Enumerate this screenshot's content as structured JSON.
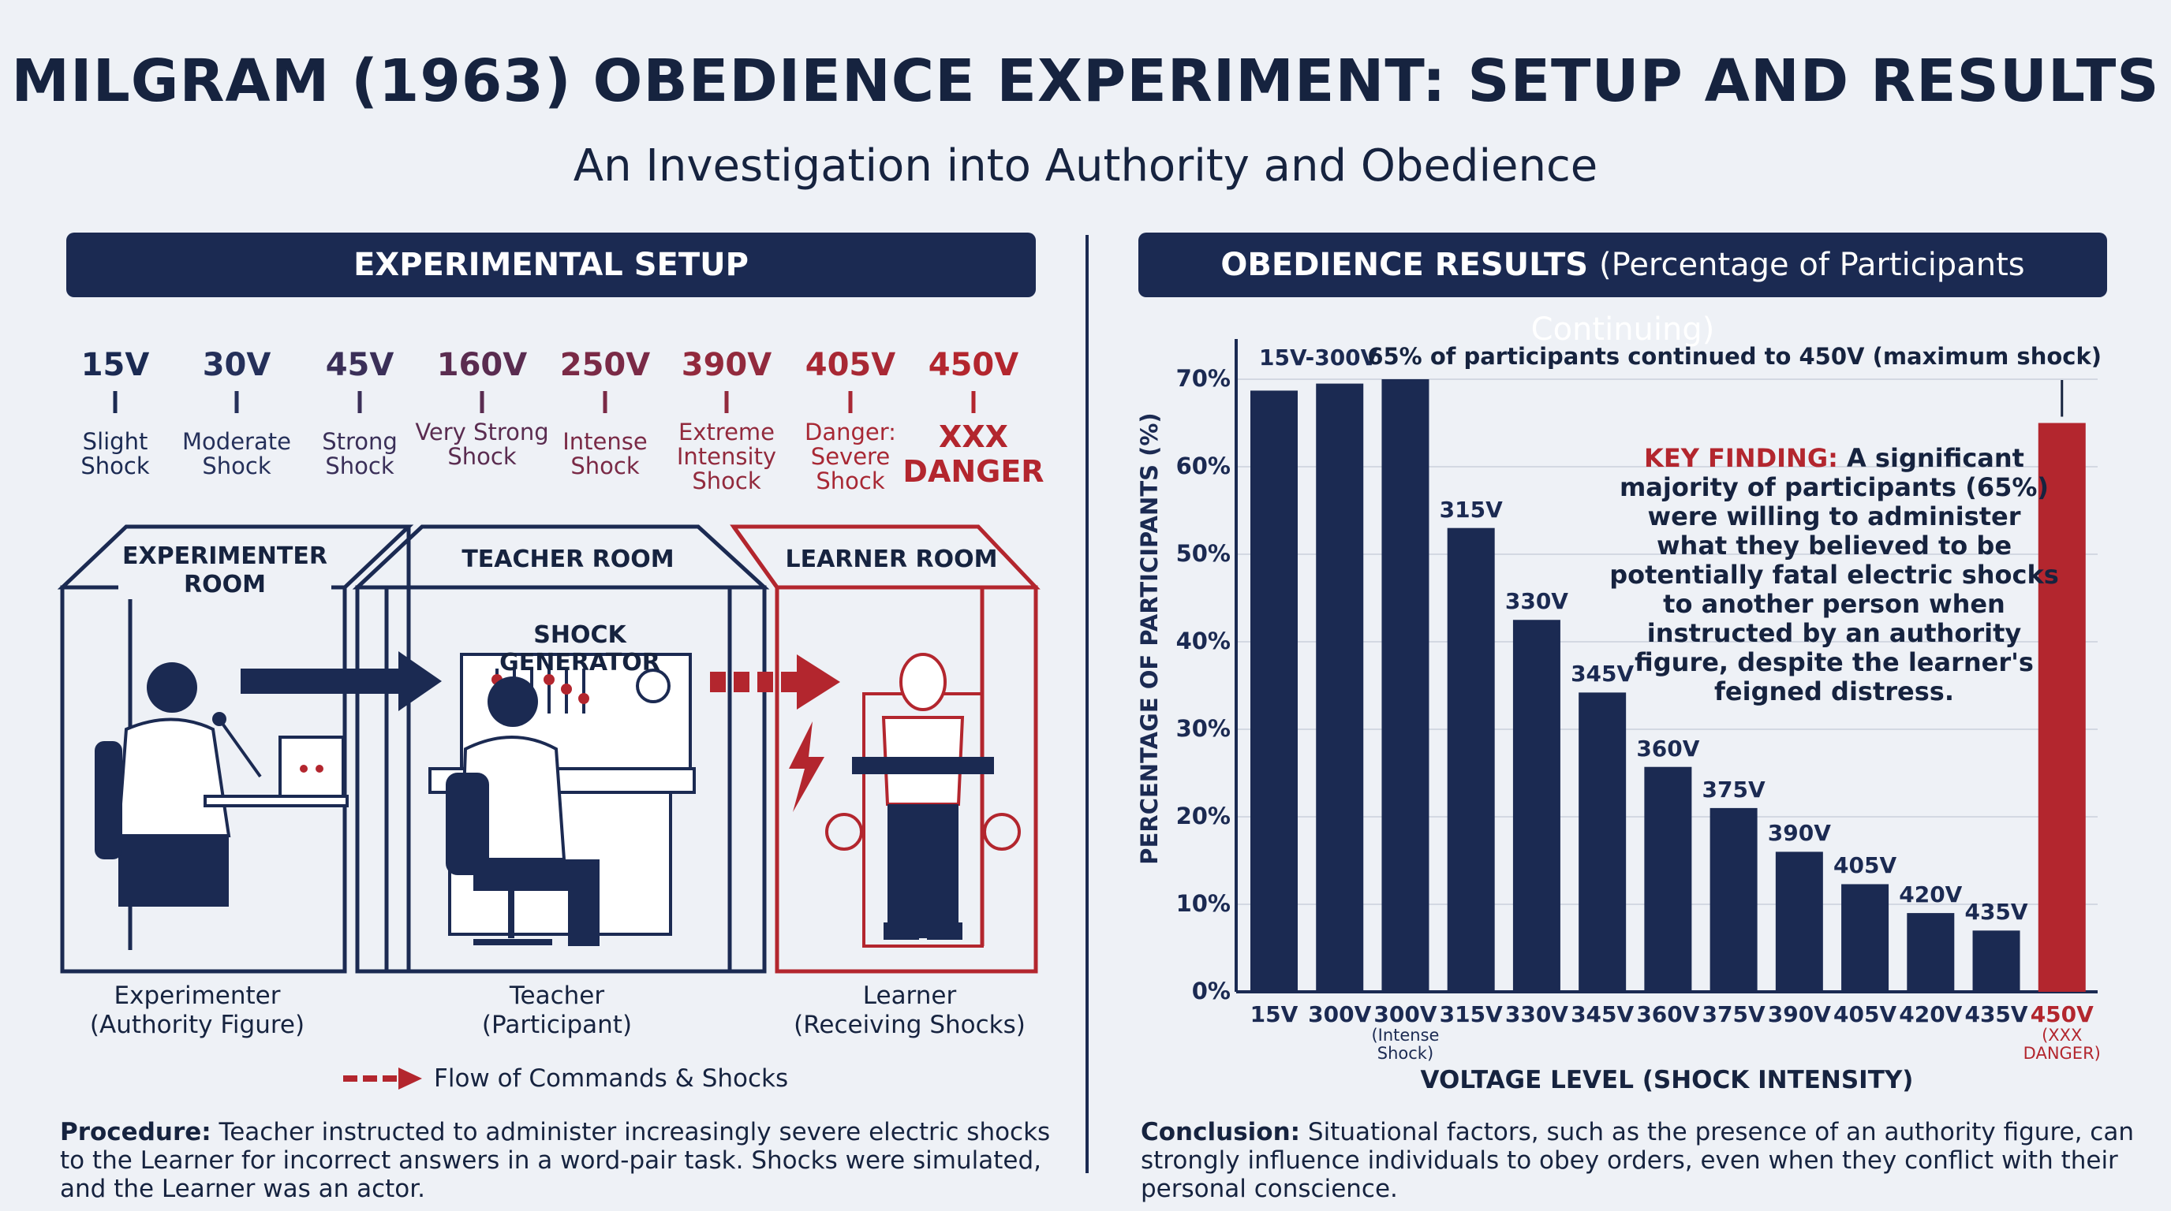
{
  "title": "MILGRAM (1963) OBEDIENCE EXPERIMENT: SETUP AND RESULTS",
  "subtitle": "An Investigation into Authority and Obedience",
  "colors": {
    "navy": "#1b2a52",
    "red": "#b3262e",
    "background": "#eef1f6"
  },
  "setup": {
    "header": "EXPERIMENTAL SETUP",
    "scale": [
      {
        "voltage": "15V",
        "desc": "Slight Shock"
      },
      {
        "voltage": "30V",
        "desc": "Moderate Shock"
      },
      {
        "voltage": "45V",
        "desc": "Strong Shock"
      },
      {
        "voltage": "160V",
        "desc": "Very Strong Shock"
      },
      {
        "voltage": "250V",
        "desc": "Intense Shock"
      },
      {
        "voltage": "390V",
        "desc": "Extreme Intensity Shock"
      },
      {
        "voltage": "405V",
        "desc": "Danger: Severe Shock"
      },
      {
        "voltage": "450V",
        "desc": "XXX DANGER"
      }
    ],
    "rooms": {
      "experimenter": "EXPERIMENTER ROOM",
      "teacher": "TEACHER ROOM",
      "generator": "SHOCK GENERATOR",
      "learner": "LEARNER ROOM"
    },
    "captions": {
      "experimenter_1": "Experimenter",
      "experimenter_2": "(Authority Figure)",
      "teacher_1": "Teacher",
      "teacher_2": "(Participant)",
      "learner_1": "Learner",
      "learner_2": "(Receiving Shocks)"
    },
    "legend": "Flow of Commands & Shocks",
    "procedure_label": "Procedure:",
    "procedure_text": "Teacher instructed to administer increasingly severe electric shocks to the Learner for incorrect answers in a word-pair task. Shocks were simulated, and the Learner was an actor."
  },
  "results": {
    "header_bold": "OBEDIENCE RESULTS",
    "header_light": "(Percentage of Participants Continuing)",
    "key_label": "KEY FINDING:",
    "key_text": "A significant majority of participants (65%) were willing to administer what they believed to be potentially fatal electric shocks to another person when instructed by an authority figure, despite the learner's feigned distress.",
    "conclusion_label": "Conclusion:",
    "conclusion_text": "Situational factors, such as the presence of an authority figure, can strongly influence individuals to obey orders, even when they conflict with their personal conscience."
  },
  "chart_data": {
    "type": "bar",
    "title": "OBEDIENCE RESULTS (Percentage of Participants Continuing)",
    "xlabel": "VOLTAGE LEVEL (SHOCK INTENSITY)",
    "ylabel": "PERCENTAGE OF PARTICIPANTS (%)",
    "ylim": [
      0,
      70
    ],
    "yticks": [
      "0%",
      "10%",
      "20%",
      "30%",
      "40%",
      "50%",
      "60%",
      "70%"
    ],
    "grid": true,
    "categories": [
      "15V",
      "300V",
      "300V",
      "315V",
      "330V",
      "345V",
      "360V",
      "375V",
      "390V",
      "405V",
      "420V",
      "435V",
      "450V"
    ],
    "category_sublabels": [
      "",
      "",
      "(Intense Shock)",
      "",
      "",
      "",
      "",
      "",
      "",
      "",
      "",
      "",
      "(XXX DANGER)"
    ],
    "values": [
      68.7,
      69.5,
      70,
      53,
      42.5,
      34.2,
      25.7,
      21,
      16,
      12.3,
      9,
      7,
      65
    ],
    "bar_labels": [
      "",
      "",
      "",
      "315V",
      "330V",
      "345V",
      "360V",
      "375V",
      "390V",
      "405V",
      "420V",
      "435V",
      ""
    ],
    "highlight_color": "#b3262e",
    "bar_color": "#1b2a52",
    "annotations": {
      "group": "15V-300V",
      "max": "65% of participants continued to 450V (maximum shock)"
    }
  }
}
